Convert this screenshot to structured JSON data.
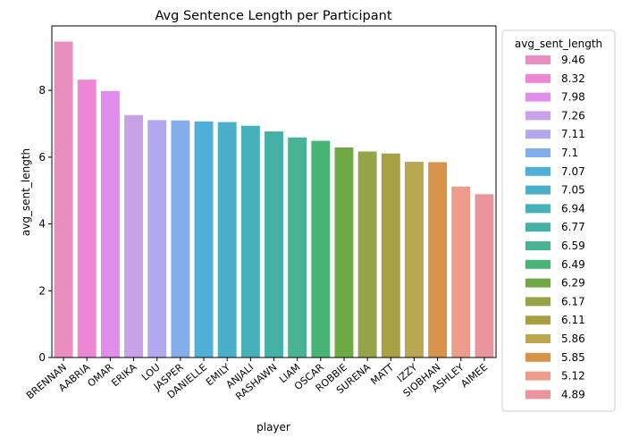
{
  "chart_data": {
    "type": "bar",
    "title": "Avg Sentence Length per Participant",
    "xlabel": "player",
    "ylabel": "avg_sent_length",
    "ylim": [
      0,
      9.93
    ],
    "yticks": [
      0,
      2,
      4,
      6,
      8
    ],
    "grid": false,
    "legend": {
      "title": "avg_sent_length",
      "placement": "outside-right",
      "entries": [
        "9.46",
        "8.32",
        "7.98",
        "7.26",
        "7.11",
        "7.1",
        "7.07",
        "7.05",
        "6.94",
        "6.77",
        "6.59",
        "6.49",
        "6.29",
        "6.17",
        "6.11",
        "5.86",
        "5.85",
        "5.12",
        "4.89"
      ]
    },
    "categories": [
      "BRENNAN",
      "AABRIA",
      "OMAR",
      "ERIKA",
      "LOU",
      "JASPER",
      "DANIELLE",
      "EMILY",
      "ANJALI",
      "RASHAWN",
      "LIAM",
      "OSCAR",
      "ROBBIE",
      "SURENA",
      "MATT",
      "IZZY",
      "SIOBHAN",
      "ASHLEY",
      "AIMEE"
    ],
    "values": [
      9.46,
      8.32,
      7.98,
      7.26,
      7.11,
      7.1,
      7.07,
      7.05,
      6.94,
      6.77,
      6.59,
      6.49,
      6.29,
      6.17,
      6.11,
      5.86,
      5.85,
      5.12,
      4.89
    ],
    "colors": [
      "#ea8dc1",
      "#ed87d3",
      "#e08deb",
      "#c8a1e8",
      "#b1a8ef",
      "#84aeeb",
      "#4fafd6",
      "#4bafca",
      "#46b1b9",
      "#45b1a6",
      "#47b394",
      "#4ab476",
      "#6faa45",
      "#95a448",
      "#a8a045",
      "#bba652",
      "#d8934a",
      "#ec9c8a",
      "#ea949e"
    ]
  }
}
